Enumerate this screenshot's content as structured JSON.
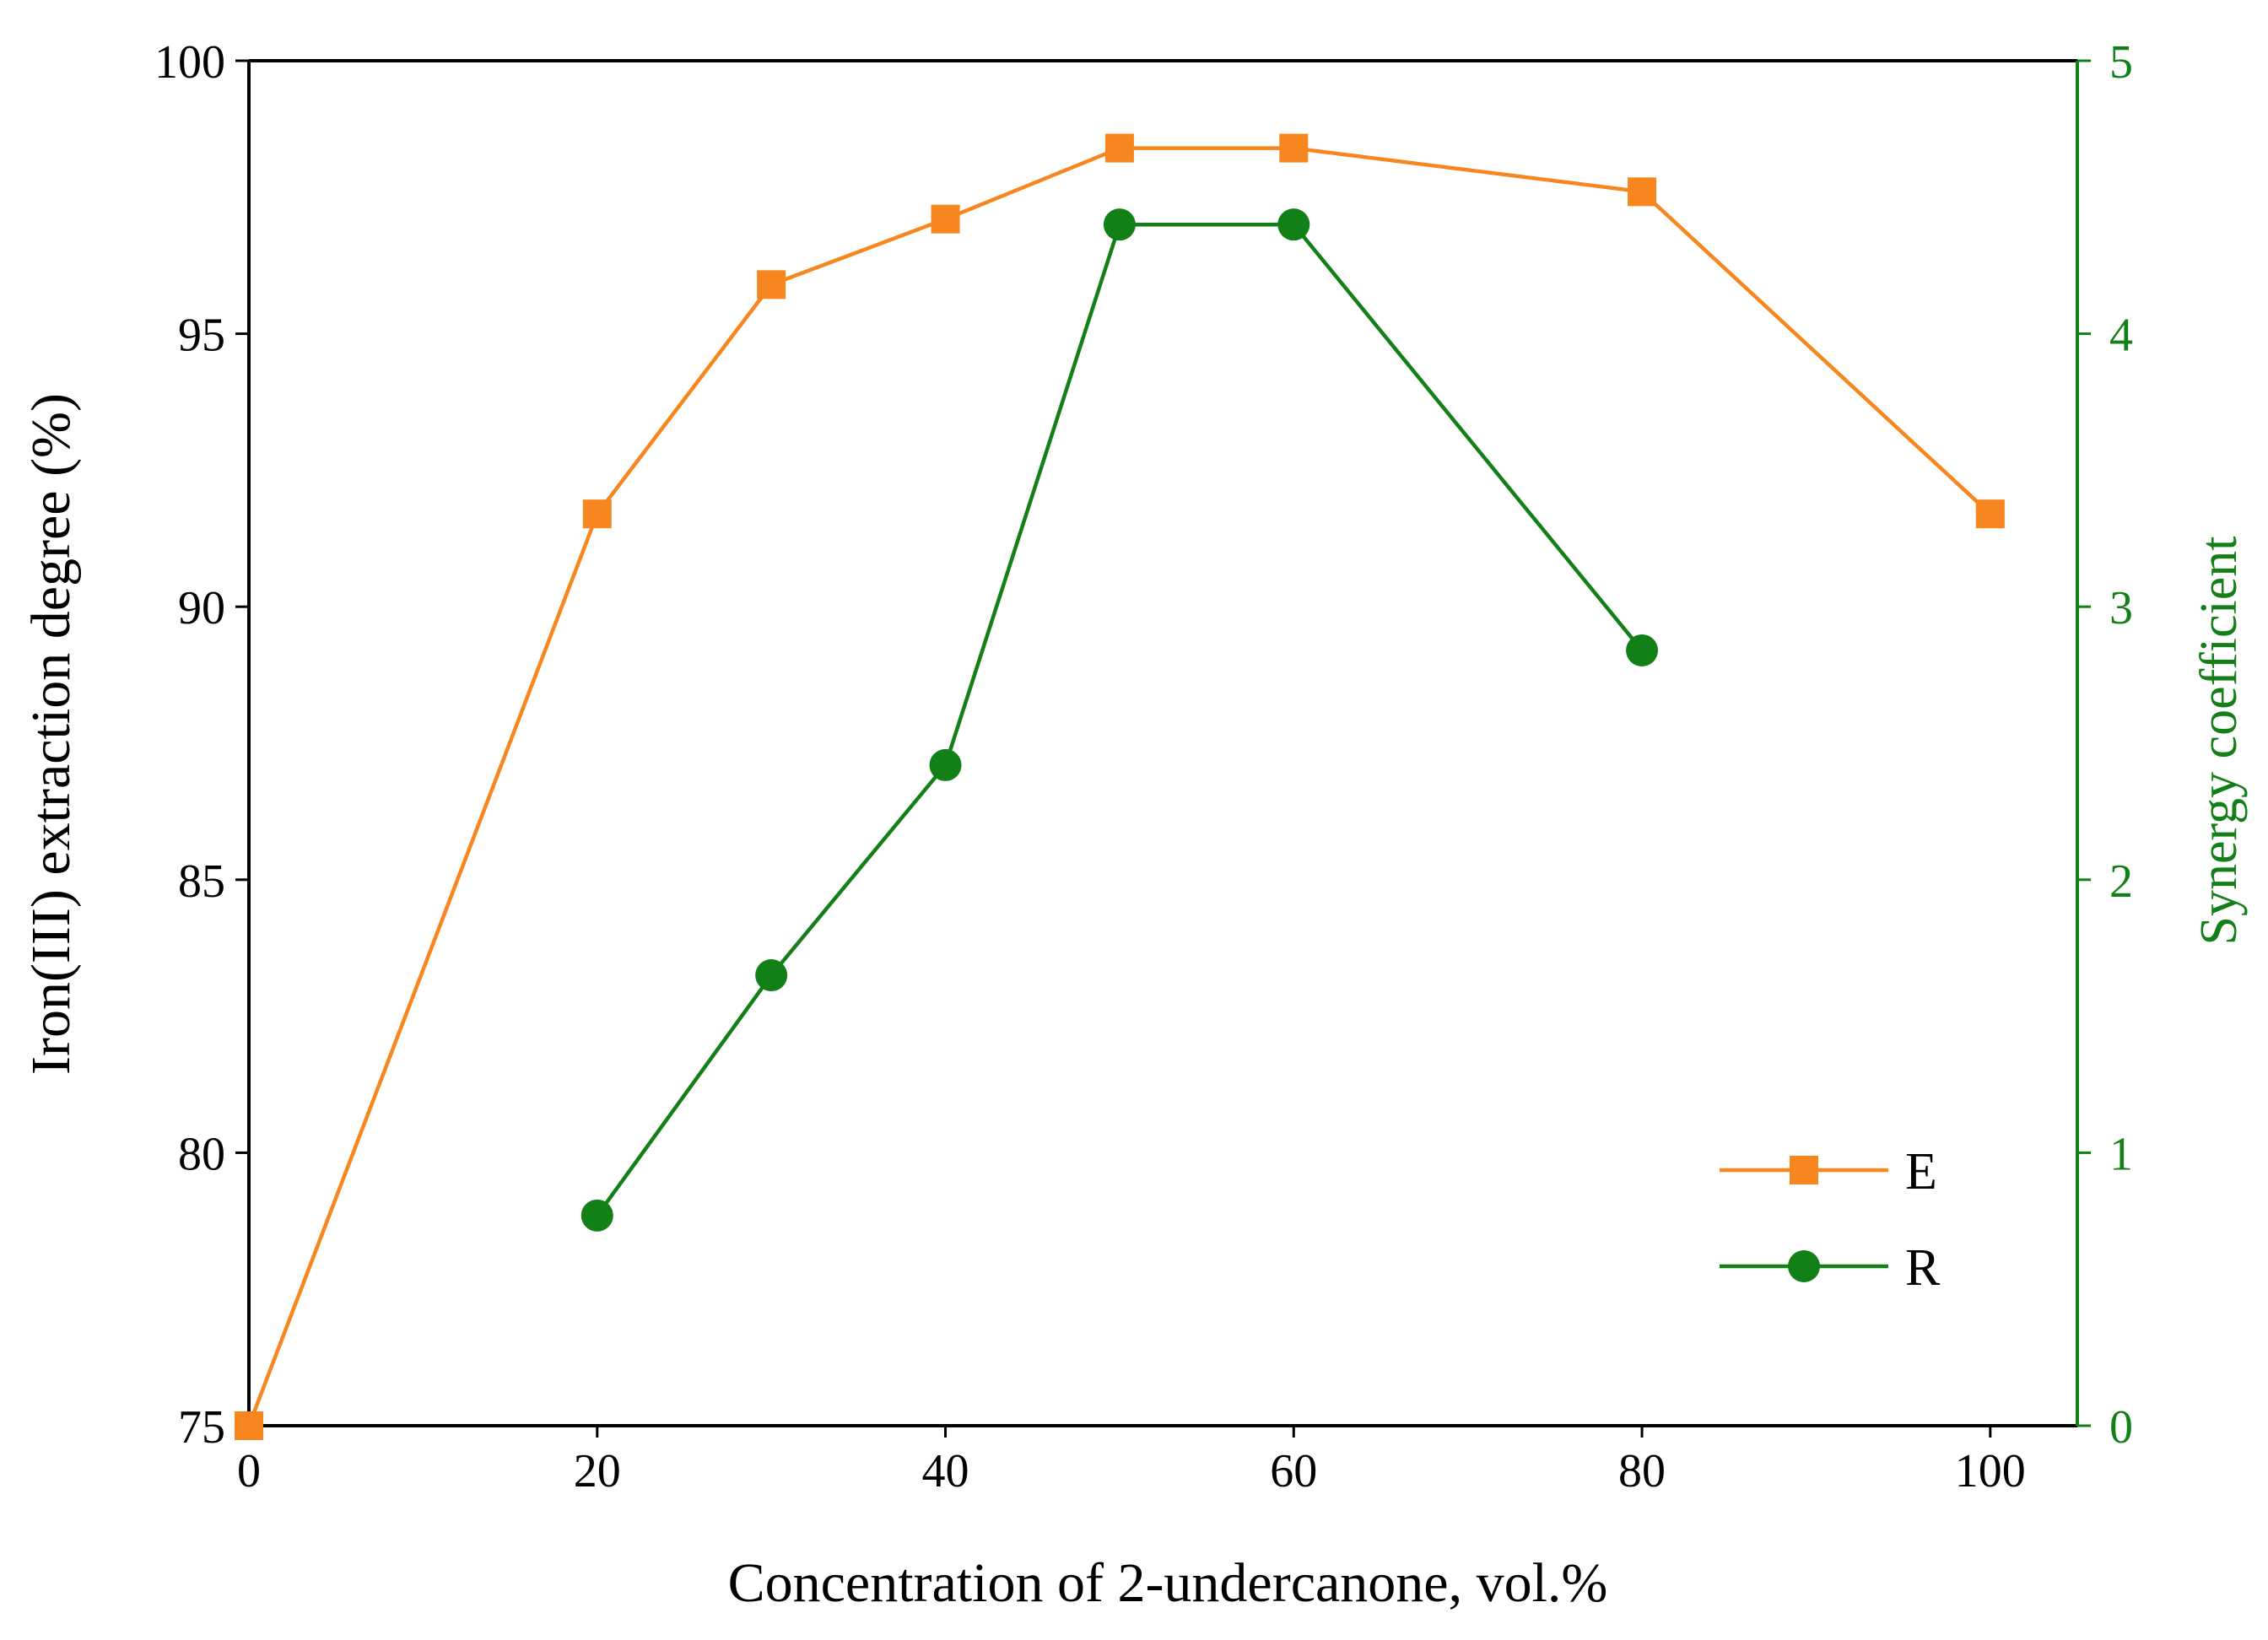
{
  "chart_data": {
    "type": "line",
    "title": "",
    "xlabel": "Concentration of 2-undercanone, vol.%",
    "ylabel_left": "Iron(III) extraction degree (%)",
    "ylabel_right": "Synergy coefficient",
    "xlim": [
      0,
      105
    ],
    "ylim_left": [
      75,
      100
    ],
    "ylim_right": [
      0,
      5
    ],
    "x_ticks": [
      0,
      20,
      40,
      60,
      80,
      100
    ],
    "x_tick_labels": [
      "0",
      "20",
      "40",
      "60",
      "80",
      "100"
    ],
    "y_left_ticks": [
      75,
      80,
      85,
      90,
      95,
      100
    ],
    "y_left_tick_labels": [
      "75",
      "80",
      "85",
      "90",
      "95",
      "100"
    ],
    "y_right_ticks": [
      0,
      1,
      2,
      3,
      4,
      5
    ],
    "y_right_tick_labels": [
      "0",
      "1",
      "2",
      "3",
      "4",
      "5"
    ],
    "grid": false,
    "legend_position": "bottom-right",
    "colors": {
      "E": "#f7861f",
      "R": "#137f17",
      "axis": "#000000",
      "right_axis": "#137f17"
    },
    "series": [
      {
        "name": "E",
        "axis": "left",
        "marker": "square",
        "x": [
          0,
          20,
          30,
          40,
          50,
          60,
          80,
          100
        ],
        "values": [
          75.0,
          91.7,
          95.9,
          97.1,
          98.4,
          98.4,
          97.6,
          91.7
        ]
      },
      {
        "name": "R",
        "axis": "right",
        "marker": "circle",
        "x": [
          20,
          30,
          40,
          50,
          60,
          80
        ],
        "values": [
          0.77,
          1.65,
          2.42,
          4.4,
          4.4,
          2.84
        ]
      }
    ]
  }
}
